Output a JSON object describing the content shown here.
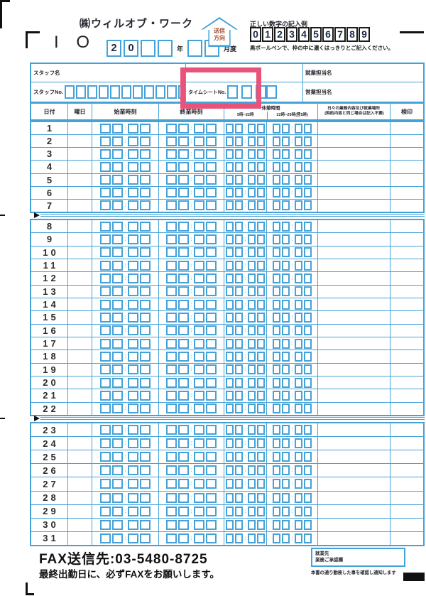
{
  "header": {
    "company": "㈱ウィルオブ・ワーク",
    "form_code": "I O",
    "year_boxes": [
      "2",
      "0",
      "",
      ""
    ],
    "year_label": "年",
    "month_boxes": [
      "",
      ""
    ],
    "month_label": "月度",
    "arrow": {
      "line1": "送信",
      "line2": "方向"
    },
    "digits_title": "正しい数字の記入例",
    "digits": [
      "0",
      "1",
      "2",
      "3",
      "4",
      "5",
      "6",
      "7",
      "8",
      "9"
    ],
    "digits_note": "黒ボールペンで、枠の中に濃くはっきりとご記入ください。"
  },
  "staff": {
    "name_label": "スタッフ名",
    "no_label": "スタッフNo.",
    "no_box_count": 12,
    "timesheet_label": "タイムシートNo.",
    "timesheet_box_count": 4,
    "duty_label": "就業担当名",
    "sales_label": "営業担当名"
  },
  "table": {
    "header": {
      "date": "日付",
      "weekday": "曜日",
      "start": "始業時刻",
      "end": "終業時刻",
      "break_title": "休憩時間",
      "break1": "5時~22時",
      "break2": "22時~29時(翌5時)",
      "work_line1": "日々の業務内容及び就業場所",
      "work_line2": "(契約内容と同じ場合は記入不要)",
      "stamp": "検印"
    },
    "blocks": [
      [
        1,
        2,
        3,
        4,
        5,
        6,
        7
      ],
      [
        8,
        9,
        10,
        11,
        12,
        13,
        14,
        15,
        16,
        17,
        18,
        19,
        20,
        21,
        22
      ],
      [
        23,
        24,
        25,
        26,
        27,
        28,
        29,
        30,
        31
      ]
    ]
  },
  "footer": {
    "fax": "FAX送信先:03-5480-8725",
    "note": "最終出勤日に、必ずFAXをお願いします。",
    "approval_line1": "就業先",
    "approval_line2": "業務ご承認欄",
    "approval_note": "本書の通り勤務した事を確認し通知します"
  },
  "colors": {
    "blue": "#45a2d8",
    "pink": "#e8537a"
  }
}
